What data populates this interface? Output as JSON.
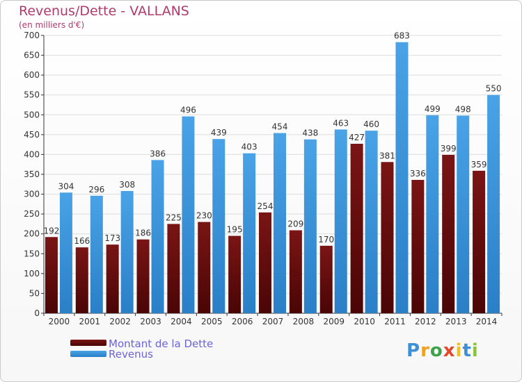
{
  "title": "Revenus/Dette - VALLANS",
  "subtitle": "(en milliers d'€)",
  "logo": {
    "letters": [
      "P",
      "r",
      "o",
      "x",
      "i",
      "t",
      "i"
    ],
    "colors": [
      "#3d8fd6",
      "#f0a020",
      "#3da24a",
      "#e04a2f",
      "#f0c020",
      "#3d8fd6",
      "#8ac43f"
    ]
  },
  "colors": {
    "debt": "#7a1515",
    "debt_dark": "#4a0505",
    "revenue": "#4aa3e6",
    "revenue_dark": "#2a7fc6",
    "grid": "#dddddd",
    "axis": "#333333"
  },
  "chart_data": {
    "type": "bar",
    "categories": [
      "2000",
      "2001",
      "2002",
      "2003",
      "2004",
      "2005",
      "2006",
      "2007",
      "2008",
      "2009",
      "2010",
      "2011",
      "2012",
      "2013",
      "2014"
    ],
    "series": [
      {
        "name": "Montant de la Dette",
        "values": [
          192,
          166,
          173,
          186,
          225,
          230,
          195,
          254,
          209,
          170,
          427,
          381,
          336,
          399,
          359
        ]
      },
      {
        "name": "Revenus",
        "values": [
          304,
          296,
          308,
          386,
          496,
          439,
          403,
          454,
          438,
          463,
          460,
          683,
          499,
          498,
          550
        ]
      }
    ],
    "ylim": [
      0,
      700
    ],
    "yticks": [
      0,
      50,
      100,
      150,
      200,
      250,
      300,
      350,
      400,
      450,
      500,
      550,
      600,
      650,
      700
    ],
    "grid": true,
    "legend": "bottom-left"
  }
}
